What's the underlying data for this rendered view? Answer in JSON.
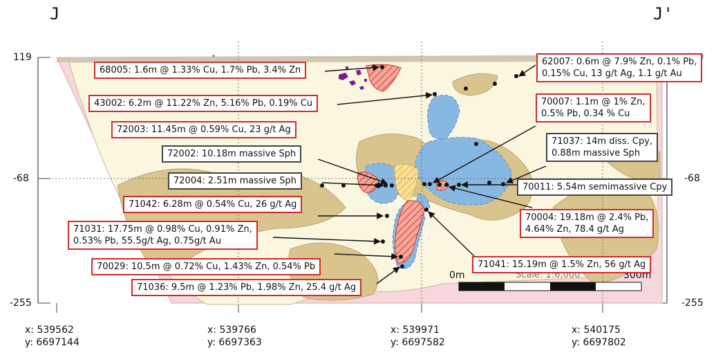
{
  "section": {
    "left_label": "J",
    "right_label": "J'",
    "elevations": {
      "top_left": "119",
      "top_right": "119",
      "mid_left": "-68",
      "mid_right": "-68",
      "bottom_left": "-255",
      "bottom_right": "-255"
    },
    "coordinates": [
      {
        "x": "x: 539562",
        "y": "y: 6697144"
      },
      {
        "x": "x: 539766",
        "y": "y: 6697363"
      },
      {
        "x": "x: 539971",
        "y": "y: 6697582"
      },
      {
        "x": "x: 540175",
        "y": "y: 6697802"
      }
    ],
    "scale": {
      "label": "Scale: 1:6,000",
      "start": "0m",
      "end": "300m"
    }
  },
  "callouts": [
    {
      "id": "68005",
      "lines": [
        "68005: 1.6m @ 1.33% Cu, 1.7% Pb, 3.4% Zn"
      ],
      "border": "red"
    },
    {
      "id": "43002",
      "lines": [
        "43002: 6.2m @ 11.22% Zn, 5.16% Pb, 0.19% Cu"
      ],
      "border": "red"
    },
    {
      "id": "72003",
      "lines": [
        "72003: 11.45m @ 0.59% Cu, 23 g/t Ag"
      ],
      "border": "red"
    },
    {
      "id": "72002",
      "lines": [
        "72002: 10.18m massive Sph"
      ],
      "border": "dark"
    },
    {
      "id": "72004",
      "lines": [
        "72004: 2.51m massive Sph"
      ],
      "border": "dark"
    },
    {
      "id": "71042",
      "lines": [
        "71042: 6.28m @ 0.54% Cu, 26 g/t Ag"
      ],
      "border": "red"
    },
    {
      "id": "71031",
      "lines": [
        "71031: 17.75m @ 0.98% Cu, 0.91% Zn,",
        "0.53% Pb, 55.5g/t Ag, 0.75g/t Au"
      ],
      "border": "red"
    },
    {
      "id": "70029",
      "lines": [
        "70029: 10.5m @ 0.72% Cu, 1.43% Zn, 0.54% Pb"
      ],
      "border": "red"
    },
    {
      "id": "71036",
      "lines": [
        "71036: 9.5m @ 1.23% Pb, 1.98% Zn, 25.4 g/t Ag"
      ],
      "border": "red"
    },
    {
      "id": "62007",
      "lines": [
        "62007: 0.6m @ 7.9% Zn, 0.1% Pb,",
        "0.15% Cu, 13 g/t Ag, 1.1 g/t Au"
      ],
      "border": "red"
    },
    {
      "id": "70007",
      "lines": [
        "70007: 1.1m @ 1% Zn,",
        "0.5% Pb, 0.34 % Cu"
      ],
      "border": "red"
    },
    {
      "id": "71037",
      "lines": [
        "71037: 14m diss. Cpy,",
        "0.88m massive Sph"
      ],
      "border": "dark"
    },
    {
      "id": "70011",
      "lines": [
        "70011: 5.54m semimassive Cpy"
      ],
      "border": "dark"
    },
    {
      "id": "70004",
      "lines": [
        "70004: 19.18m @ 2.4% Pb,",
        "4.64% Zn, 78.4 g/t Ag"
      ],
      "border": "red"
    },
    {
      "id": "71041",
      "lines": [
        "71041: 15.19m @ 1.5% Zn, 56 g/t Ag"
      ],
      "border": "red"
    }
  ],
  "colors": {
    "outer_pink": "#f8d7dc",
    "cream": "#fbf6e0",
    "khaki": "#d9c48e",
    "blue": "#87b8e2",
    "callout_red": "#d62828",
    "hatch_red": "#d13b2b",
    "hatch_yellow": "#e6b83a",
    "purple": "#7a1a8c"
  }
}
